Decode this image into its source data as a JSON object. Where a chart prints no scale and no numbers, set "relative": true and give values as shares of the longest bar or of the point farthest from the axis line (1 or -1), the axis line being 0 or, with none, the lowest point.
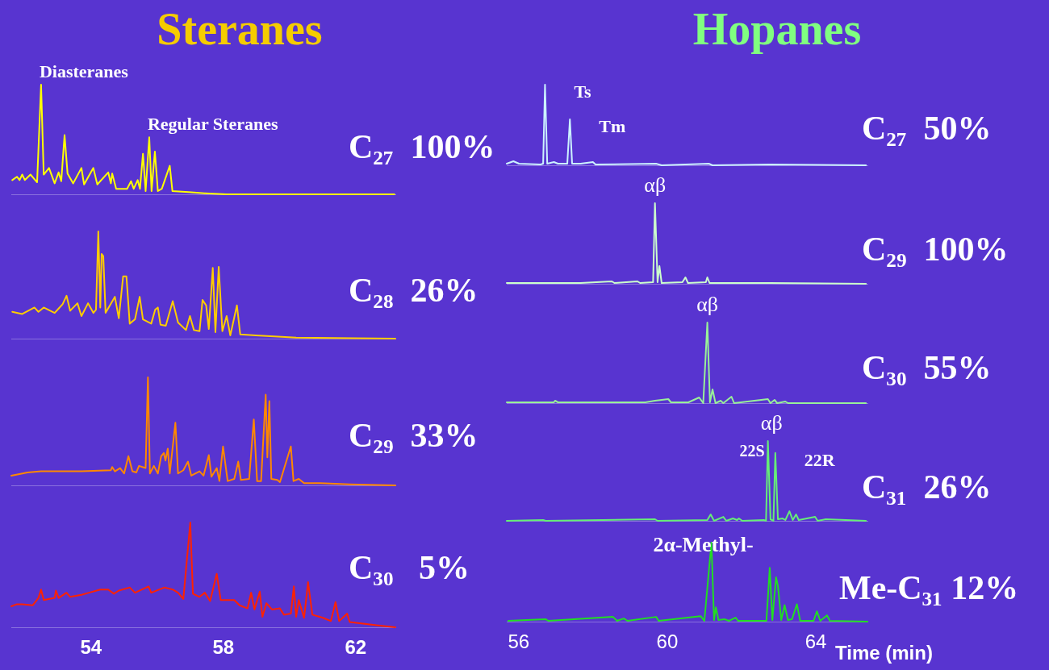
{
  "chart_data": [
    {
      "type": "line",
      "title": "Steranes",
      "relative": true,
      "xlim": [
        51.59,
        63.2
      ],
      "tick_labels": false,
      "x": [
        51.62,
        51.76,
        51.84,
        51.92,
        52.0,
        52.17,
        52.37,
        52.49,
        52.57,
        52.73,
        52.9,
        53.02,
        53.1,
        53.2,
        53.29,
        53.46,
        53.71,
        53.79,
        54.07,
        54.19,
        54.52,
        54.6,
        54.64,
        54.76,
        55.09,
        55.21,
        55.29,
        55.41,
        55.48,
        55.57,
        55.65,
        55.76,
        55.83,
        55.93,
        56.02,
        56.14,
        56.38,
        56.46,
        56.95,
        57.43,
        58.09,
        63.17
      ],
      "series": [
        {
          "name": "C₂₇  100%",
          "color": "#ffff00",
          "values": [
            0.13,
            0.16,
            0.13,
            0.18,
            0.13,
            0.18,
            0.11,
            1,
            0.18,
            0.24,
            0.1,
            0.2,
            0.12,
            0.54,
            0.19,
            0.1,
            0.24,
            0.09,
            0.24,
            0.09,
            0.2,
            0.1,
            0.19,
            0.05,
            0.05,
            0.12,
            0.05,
            0.13,
            0.05,
            0.37,
            0.03,
            0.52,
            0.03,
            0.39,
            0.03,
            0.05,
            0.26,
            0.03,
            0.02,
            0.01,
            0,
            0
          ]
        }
      ],
      "annotations": [
        {
          "text": "Diasteranes",
          "x": 52.49,
          "y": 1
        },
        {
          "text": "Regular Steranes",
          "x": 55.76,
          "y": 0.52
        }
      ]
    },
    {
      "type": "line",
      "relative": true,
      "xlim": [
        51.59,
        63.2
      ],
      "tick_labels": false,
      "x": [
        51.62,
        51.92,
        52.29,
        52.41,
        52.57,
        52.9,
        53.02,
        53.14,
        53.26,
        53.37,
        53.59,
        53.71,
        53.91,
        54.07,
        54.15,
        54.22,
        54.28,
        54.32,
        54.37,
        54.44,
        54.72,
        54.84,
        54.97,
        55.07,
        55.17,
        55.33,
        55.47,
        55.57,
        55.82,
        55.94,
        56.02,
        56.1,
        56.26,
        56.47,
        56.63,
        56.87,
        56.99,
        57.11,
        57.28,
        57.37,
        57.48,
        57.56,
        57.68,
        57.76,
        57.86,
        57.97,
        58.1,
        58.21,
        58.41,
        58.51,
        58.98,
        60.2,
        63.2
      ],
      "series": [
        {
          "name": "C₂₈  26%",
          "color": "#ffcc00",
          "values": [
            0.25,
            0.23,
            0.29,
            0.25,
            0.29,
            0.24,
            0.28,
            0.32,
            0.4,
            0.26,
            0.33,
            0.21,
            0.33,
            0.24,
            0.27,
            1,
            0.29,
            0.79,
            0.77,
            0.24,
            0.39,
            0.19,
            0.58,
            0.58,
            0.14,
            0.18,
            0.39,
            0.18,
            0.14,
            0.27,
            0.29,
            0.13,
            0.12,
            0.35,
            0.15,
            0.08,
            0.21,
            0.08,
            0.07,
            0.36,
            0.31,
            0.09,
            0.66,
            0.06,
            0.67,
            0.07,
            0.21,
            0.03,
            0.31,
            0.04,
            0.03,
            0.01,
            0
          ]
        }
      ]
    },
    {
      "type": "line",
      "relative": true,
      "xlim": [
        51.59,
        63.2
      ],
      "tick_labels": false,
      "x": [
        51.59,
        52.08,
        52.49,
        52.9,
        53.71,
        54.6,
        54.64,
        54.72,
        54.88,
        55.0,
        55.13,
        55.25,
        55.37,
        55.45,
        55.65,
        55.72,
        55.78,
        55.9,
        56.02,
        56.12,
        56.2,
        56.25,
        56.32,
        56.38,
        56.55,
        56.63,
        56.79,
        56.93,
        57.03,
        57.28,
        57.4,
        57.56,
        57.64,
        57.8,
        57.88,
        57.99,
        58.13,
        58.33,
        58.45,
        58.53,
        58.78,
        58.92,
        59.02,
        59.14,
        59.28,
        59.33,
        59.39,
        59.45,
        59.63,
        59.71,
        60.04,
        60.12,
        60.28,
        60.44,
        60.93,
        61.82,
        63.2
      ],
      "series": [
        {
          "name": "C₂₉  33%",
          "color": "#ff8800",
          "values": [
            0.09,
            0.12,
            0.13,
            0.13,
            0.13,
            0.14,
            0.17,
            0.13,
            0.16,
            0.11,
            0.27,
            0.13,
            0.12,
            0.18,
            0.16,
            1,
            0.11,
            0.18,
            0.11,
            0.27,
            0.3,
            0.23,
            0.34,
            0.11,
            0.58,
            0.11,
            0.14,
            0.22,
            0.09,
            0.13,
            0.09,
            0.28,
            0.08,
            0.16,
            0.04,
            0.36,
            0.04,
            0.06,
            0.22,
            0.05,
            0.06,
            0.61,
            0.04,
            0.04,
            0.84,
            0.26,
            0.78,
            0.06,
            0.05,
            0.03,
            0.36,
            0.04,
            0.06,
            0.02,
            0.02,
            0.01,
            0
          ]
        }
      ]
    },
    {
      "type": "line",
      "relative": true,
      "xlim": [
        51.59,
        63.2
      ],
      "xticks": [
        54,
        58,
        62
      ],
      "tick_labels": "x",
      "x": [
        51.59,
        51.76,
        51.92,
        52.24,
        52.41,
        52.49,
        52.57,
        52.9,
        52.94,
        53.02,
        53.26,
        53.37,
        53.71,
        53.94,
        54.28,
        54.52,
        54.69,
        54.84,
        55.17,
        55.33,
        55.74,
        55.82,
        56.22,
        56.47,
        56.63,
        56.79,
        57.0,
        57.08,
        57.28,
        57.44,
        57.6,
        57.8,
        57.92,
        58.33,
        58.49,
        58.73,
        58.84,
        58.94,
        59.1,
        59.18,
        59.3,
        59.47,
        59.71,
        59.83,
        60.04,
        60.13,
        60.2,
        60.28,
        60.44,
        60.56,
        60.69,
        61.01,
        61.25,
        61.39,
        61.5,
        61.74,
        61.82,
        62.63,
        63.2
      ],
      "series": [
        {
          "name": "C₃₀   5%",
          "color": "#ff2200",
          "values": [
            0.2,
            0.22,
            0.22,
            0.21,
            0.28,
            0.36,
            0.26,
            0.28,
            0.35,
            0.28,
            0.33,
            0.29,
            0.31,
            0.33,
            0.36,
            0.36,
            0.32,
            0.35,
            0.38,
            0.33,
            0.39,
            0.33,
            0.38,
            0.36,
            0.33,
            0.27,
            1,
            0.32,
            0.29,
            0.33,
            0.25,
            0.51,
            0.26,
            0.26,
            0.21,
            0.18,
            0.33,
            0.17,
            0.34,
            0.1,
            0.23,
            0.17,
            0.18,
            0.12,
            0.13,
            0.39,
            0.1,
            0.26,
            0.09,
            0.43,
            0.12,
            0.09,
            0.06,
            0.24,
            0.06,
            0.13,
            0.05,
            0.02,
            0
          ]
        }
      ]
    },
    {
      "type": "line",
      "title": "Hopanes",
      "relative": true,
      "xlim": [
        55.68,
        65.39
      ],
      "tick_labels": false,
      "x": [
        55.68,
        55.86,
        56.01,
        56.59,
        56.66,
        56.71,
        56.77,
        56.95,
        57.06,
        57.31,
        57.38,
        57.44,
        57.67,
        58.0,
        58.07,
        59.7,
        59.85,
        61.12,
        61.22,
        62.75,
        65.35
      ],
      "series": [
        {
          "name": "C₂₇  50%",
          "color": "#ccf2ff",
          "values": [
            0.02,
            0.05,
            0.02,
            0.01,
            0.02,
            1,
            0.02,
            0.04,
            0.02,
            0.02,
            0.57,
            0.02,
            0.02,
            0.04,
            0.01,
            0.02,
            0,
            0.02,
            0,
            0.01,
            0
          ]
        }
      ],
      "annotations": [
        {
          "text": "Ts",
          "x": 56.71,
          "y": 1
        },
        {
          "text": "Tm",
          "x": 57.38,
          "y": 0.57
        }
      ]
    },
    {
      "type": "line",
      "relative": true,
      "xlim": [
        55.68,
        65.39
      ],
      "tick_labels": false,
      "x": [
        55.68,
        57.67,
        58.51,
        58.58,
        59.2,
        59.27,
        59.62,
        59.67,
        59.74,
        59.79,
        59.85,
        60.41,
        60.49,
        60.56,
        61.04,
        61.08,
        61.14,
        62.75,
        65.35
      ],
      "series": [
        {
          "name": "C₂₉  100%",
          "color": "#ccffcc",
          "values": [
            0.01,
            0.01,
            0.03,
            0.01,
            0.03,
            0.01,
            0.02,
            1,
            0.02,
            0.22,
            0.01,
            0.02,
            0.08,
            0.01,
            0.02,
            0.08,
            0.01,
            0.01,
            0
          ]
        }
      ],
      "annotations": [
        {
          "text": "αβ",
          "x": 59.67,
          "y": 1
        }
      ]
    },
    {
      "type": "line",
      "relative": true,
      "xlim": [
        55.68,
        65.39
      ],
      "tick_labels": false,
      "x": [
        55.68,
        56.95,
        56.98,
        57.06,
        59.41,
        59.67,
        60.03,
        60.1,
        60.57,
        60.86,
        60.97,
        61.08,
        61.15,
        61.22,
        61.3,
        61.44,
        61.51,
        61.73,
        61.8,
        62.71,
        62.78,
        62.89,
        62.96,
        63.18,
        63.25,
        65.35
      ],
      "series": [
        {
          "name": "C₃₀  55%",
          "color": "#99f099",
          "values": [
            0.01,
            0.01,
            0.03,
            0.01,
            0.01,
            0.03,
            0.05,
            0.01,
            0.01,
            0.07,
            0,
            1,
            0.01,
            0.17,
            0,
            0.03,
            0,
            0.08,
            0,
            0.05,
            0,
            0.04,
            0,
            0.02,
            0,
            0
          ]
        }
      ],
      "annotations": [
        {
          "text": "αβ",
          "x": 61.08,
          "y": 1
        }
      ]
    },
    {
      "type": "line",
      "relative": true,
      "xlim": [
        55.68,
        65.39
      ],
      "tick_labels": false,
      "x": [
        55.68,
        56.66,
        56.73,
        59.67,
        59.74,
        61.08,
        61.17,
        61.26,
        61.51,
        61.59,
        61.77,
        61.88,
        61.93,
        62.02,
        62.6,
        62.66,
        62.71,
        62.78,
        62.86,
        62.91,
        62.98,
        63.11,
        63.18,
        63.29,
        63.38,
        63.47,
        63.54,
        63.98,
        64.05,
        64.27,
        65.35
      ],
      "series": [
        {
          "name": "C₃₁  26%",
          "color": "#66ee77",
          "values": [
            0,
            0.01,
            0,
            0.02,
            0,
            0.01,
            0.08,
            0,
            0.05,
            0,
            0.03,
            0.01,
            0.03,
            0,
            0.01,
            0,
            1,
            0.02,
            0,
            0.85,
            0.02,
            0.03,
            0.01,
            0.12,
            0.01,
            0.08,
            0.01,
            0.05,
            0,
            0.02,
            0
          ]
        }
      ],
      "annotations": [
        {
          "text": "22S",
          "x": 62.71,
          "y": 1
        },
        {
          "text": "αβ",
          "x": 62.81,
          "y": 1
        },
        {
          "text": "22R",
          "x": 62.91,
          "y": 0.85
        }
      ]
    },
    {
      "type": "line",
      "relative": true,
      "xlim": [
        55.68,
        65.39
      ],
      "xticks": [
        56,
        60,
        64
      ],
      "xlabel": "Time (min)",
      "tick_labels": "x",
      "x": [
        55.72,
        56.73,
        56.8,
        58.54,
        58.65,
        58.83,
        58.93,
        59.7,
        59.77,
        60.9,
        61.0,
        61.19,
        61.26,
        61.31,
        61.38,
        61.55,
        61.66,
        61.84,
        61.91,
        62.67,
        62.76,
        62.83,
        62.93,
        62.98,
        63.07,
        63.16,
        63.25,
        63.36,
        63.49,
        63.58,
        63.94,
        64.03,
        64.12,
        64.3,
        64.38,
        65.39
      ],
      "series": [
        {
          "name": "Me-C₃₁ 12%",
          "color": "#22dd22",
          "values": [
            0.01,
            0.03,
            0.01,
            0.06,
            0.01,
            0.04,
            0.01,
            0.06,
            0.01,
            0.07,
            0.01,
            1,
            0.02,
            0.18,
            0.02,
            0.03,
            0.01,
            0.05,
            0.01,
            0.01,
            0.68,
            0.02,
            0.56,
            0.45,
            0.02,
            0.21,
            0.02,
            0.03,
            0.22,
            0.01,
            0.01,
            0.13,
            0.01,
            0.08,
            0.01,
            0
          ]
        }
      ],
      "annotations": [
        {
          "text": "2α-Methyl-",
          "x": 61.19,
          "y": 1
        }
      ]
    }
  ]
}
